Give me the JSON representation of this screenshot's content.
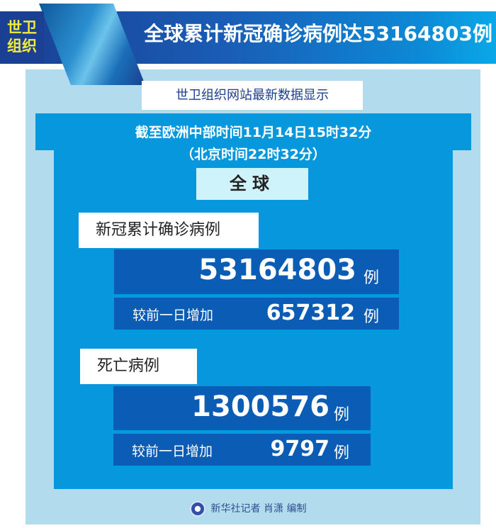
{
  "header": {
    "badge_line1": "世卫",
    "badge_line2": "组织",
    "title": "全球累计新冠确诊病例达53164803例"
  },
  "source": "世卫组织网站最新数据显示",
  "time": {
    "cet": "截至欧洲中部时间11月14日15时32分",
    "beijing": "（北京时间22时32分）"
  },
  "scope": "全球",
  "confirmed": {
    "label": "新冠累计确诊病例",
    "total": "53164803",
    "unit": "例",
    "increase_label": "较前一日增加",
    "increase": "657312",
    "increase_unit": "例"
  },
  "deaths": {
    "label": "死亡病例",
    "total": "1300576",
    "unit": "例",
    "increase_label": "较前一日增加",
    "increase": "9797",
    "increase_unit": "例"
  },
  "footer": {
    "credit": "新华社记者 肖潇 编制",
    "logo": "xinhua-logo"
  },
  "colors": {
    "banner": "#1a5cb5",
    "panel": "#b2dcee",
    "inner": "#0797dc",
    "box": "#0a5cb4",
    "badge_text": "#f4ea3a"
  }
}
